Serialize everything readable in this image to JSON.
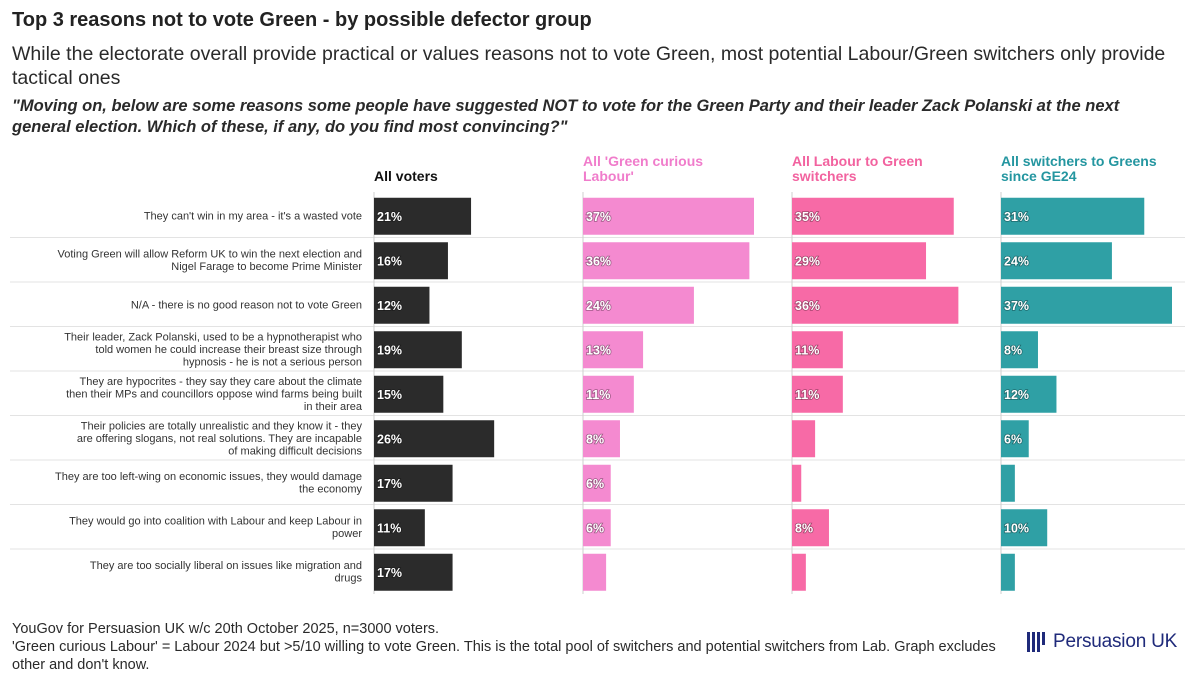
{
  "chart_data": {
    "type": "bar",
    "orientation": "horizontal",
    "title": "Top 3 reasons not to vote Green - by possible defector group",
    "subtitle": "While the electorate overall provide practical or values reasons not to vote Green, most potential Labour/Green switchers only provide tactical ones",
    "question": "\"Moving on, below are some reasons some people have suggested NOT to vote for the Green Party and their leader Zack Polanski at the next general election. Which of these, if any, do you find most convincing?\"",
    "categories": [
      "They can't win in my area - it's a wasted vote",
      "Voting Green will allow Reform UK to win the next election and Nigel Farage to become Prime Minister",
      "N/A - there is no good reason not to vote Green",
      "Their leader, Zack Polanski, used to be a hypnotherapist who told women he could increase their breast size through hypnosis - he is not a serious person",
      "They are hypocrites - they say they care about the climate then their MPs and councillors oppose wind farms being built in their area",
      "Their policies are totally unrealistic and they know it - they are offering slogans, not real solutions. They are incapable of making difficult decisions",
      "They are too left-wing on economic issues, they would damage the economy",
      "They would go into coalition with Labour and keep Labour in power",
      "They are too socially liberal on issues like migration and drugs"
    ],
    "series": [
      {
        "name": "All voters",
        "color": "#2b2b2b",
        "header_color": "#111111",
        "values": [
          21,
          16,
          12,
          19,
          15,
          26,
          17,
          11,
          17
        ],
        "labels": [
          "21%",
          "16%",
          "12%",
          "19%",
          "15%",
          "26%",
          "17%",
          "11%",
          "17%"
        ]
      },
      {
        "name": "All 'Green curious Labour'",
        "color": "#f48ad0",
        "header_color": "#f07ccb",
        "values": [
          37,
          36,
          24,
          13,
          11,
          8,
          6,
          6,
          5
        ],
        "labels": [
          "37%",
          "36%",
          "24%",
          "13%",
          "11%",
          "8%",
          "6%",
          "6%",
          null
        ]
      },
      {
        "name": "All Labour to Green switchers",
        "color": "#f76aa6",
        "header_color": "#f2629f",
        "values": [
          35,
          29,
          36,
          11,
          11,
          5,
          2,
          8,
          3
        ],
        "labels": [
          "35%",
          "29%",
          "36%",
          "11%",
          "11%",
          null,
          null,
          "8%",
          null
        ]
      },
      {
        "name": "All switchers to Greens since GE24",
        "color": "#2fa0a5",
        "header_color": "#2496a0",
        "values": [
          31,
          24,
          37,
          8,
          12,
          6,
          3,
          10,
          3
        ],
        "labels": [
          "31%",
          "24%",
          "37%",
          "8%",
          "12%",
          "6%",
          null,
          "10%",
          null
        ]
      }
    ],
    "xlim": [
      0,
      37
    ],
    "grid": false,
    "legend": "column headers"
  },
  "footer": {
    "source": "YouGov for Persuasion UK w/c 20th October 2025, n=3000 voters.",
    "note": "'Green curious Labour' = Labour 2024 but >5/10 willing to vote Green. This is the total pool of switchers and potential switchers from Lab. Graph excludes other and don't know."
  },
  "brand": {
    "name": "Persuasion UK",
    "color": "#1f2a7a"
  }
}
